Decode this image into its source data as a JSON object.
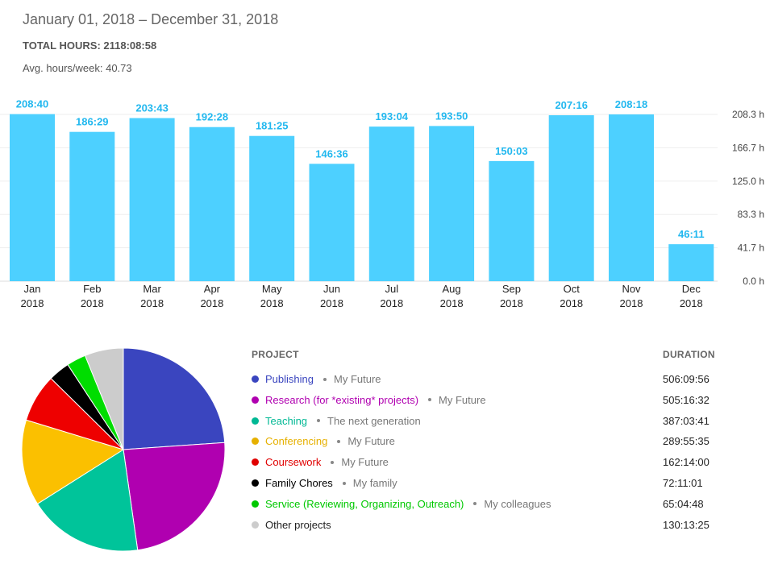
{
  "header": {
    "date_range": "January 01, 2018 – December 31, 2018",
    "total_hours": "TOTAL HOURS: 2118:08:58",
    "avg_hours": "Avg. hours/week: 40.73"
  },
  "colors": {
    "bar": "#4dd0ff",
    "bar_label": "#22b8ef",
    "grid": "#eeeeee",
    "axis_text": "#444444"
  },
  "chart_data": [
    {
      "type": "bar",
      "categories": [
        "Jan 2018",
        "Feb 2018",
        "Mar 2018",
        "Apr 2018",
        "May 2018",
        "Jun 2018",
        "Jul 2018",
        "Aug 2018",
        "Sep 2018",
        "Oct 2018",
        "Nov 2018",
        "Dec 2018"
      ],
      "category_lines": [
        [
          "Jan",
          "2018"
        ],
        [
          "Feb",
          "2018"
        ],
        [
          "Mar",
          "2018"
        ],
        [
          "Apr",
          "2018"
        ],
        [
          "May",
          "2018"
        ],
        [
          "Jun",
          "2018"
        ],
        [
          "Jul",
          "2018"
        ],
        [
          "Aug",
          "2018"
        ],
        [
          "Sep",
          "2018"
        ],
        [
          "Oct",
          "2018"
        ],
        [
          "Nov",
          "2018"
        ],
        [
          "Dec",
          "2018"
        ]
      ],
      "values": [
        208.67,
        186.48,
        203.72,
        192.47,
        181.42,
        146.6,
        193.07,
        193.83,
        150.05,
        207.27,
        208.3,
        46.18
      ],
      "value_labels": [
        "208:40",
        "186:29",
        "203:43",
        "192:28",
        "181:25",
        "146:36",
        "193:04",
        "193:50",
        "150:03",
        "207:16",
        "208:18",
        "46:11"
      ],
      "y_ticks": [
        0,
        41.7,
        83.3,
        125.0,
        166.7,
        208.3
      ],
      "y_tick_labels": [
        "0.0 h",
        "41.7 h",
        "83.3 h",
        "125.0 h",
        "166.7 h",
        "208.3 h"
      ],
      "ylim": [
        0,
        208.3
      ],
      "y_axis_position": "right",
      "grid": true,
      "title": "",
      "xlabel": "",
      "ylabel": ""
    },
    {
      "type": "pie",
      "labels": [
        "Publishing",
        "Research (for *existing* projects)",
        "Teaching",
        "Conferencing",
        "Coursework",
        "Family Chores",
        "Service (Reviewing, Organizing, Outreach)",
        "Other projects"
      ],
      "values": [
        506.17,
        505.28,
        387.06,
        289.93,
        162.23,
        72.18,
        65.08,
        130.22
      ],
      "colors": [
        "#3a45bf",
        "#b000b0",
        "#00c49a",
        "#fbc000",
        "#ee0000",
        "#000000",
        "#00dd00",
        "#cccccc"
      ],
      "start_angle": "top, clockwise"
    }
  ],
  "legend": {
    "project_header": "PROJECT",
    "duration_header": "DURATION",
    "rows": [
      {
        "project": "Publishing",
        "client": "My Future",
        "duration": "506:09:56",
        "color": "#3a45bf"
      },
      {
        "project": "Research (for *existing* projects)",
        "client": "My Future",
        "duration": "505:16:32",
        "color": "#b000b0"
      },
      {
        "project": "Teaching",
        "client": "The next generation",
        "duration": "387:03:41",
        "color": "#00b894"
      },
      {
        "project": "Conferencing",
        "client": "My Future",
        "duration": "289:55:35",
        "color": "#e6b000"
      },
      {
        "project": "Coursework",
        "client": "My Future",
        "duration": "162:14:00",
        "color": "#e00000"
      },
      {
        "project": "Family Chores",
        "client": "My family",
        "duration": "72:11:01",
        "color": "#000000"
      },
      {
        "project": "Service (Reviewing, Organizing, Outreach)",
        "client": "My colleagues",
        "duration": "65:04:48",
        "color": "#00c800"
      },
      {
        "project": "Other projects",
        "client": "",
        "duration": "130:13:25",
        "color": "#cccccc"
      }
    ]
  }
}
